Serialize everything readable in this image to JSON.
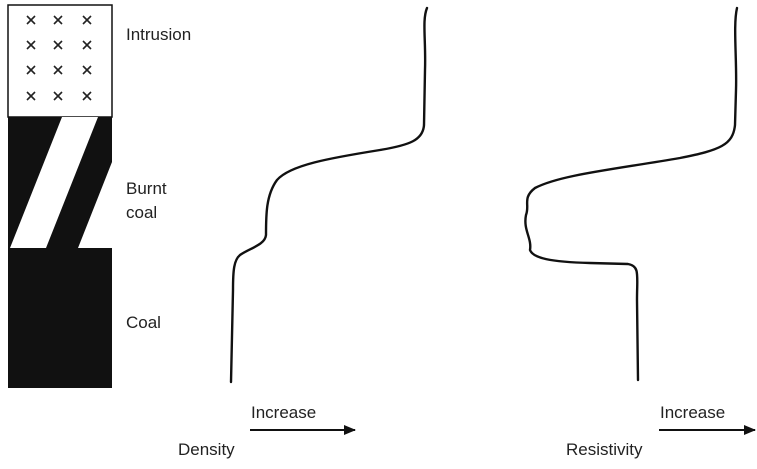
{
  "column": {
    "intrusion": "Intrusion",
    "burnt_coal": [
      "Burnt",
      "coal"
    ],
    "coal": "Coal"
  },
  "logs": [
    {
      "name": "Density",
      "axis_label": "Increase"
    },
    {
      "name": "Resistivity",
      "axis_label": "Increase"
    }
  ]
}
